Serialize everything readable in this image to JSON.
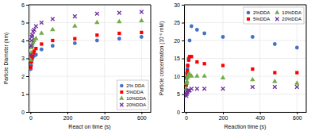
{
  "chart_data": [
    {
      "type": "scatter",
      "xlabel": "React on time (s)",
      "ylabel": "Particle Diameter (nm)",
      "x": [
        2,
        4,
        6,
        8,
        10,
        15,
        20,
        30,
        60,
        120,
        240,
        360,
        480,
        600
      ],
      "xlim": [
        -10,
        650
      ],
      "ylim": [
        0,
        6
      ],
      "xticks": [
        0,
        200,
        400,
        600
      ],
      "yticks": [
        0,
        1,
        2,
        3,
        4,
        5,
        6
      ],
      "grid": true,
      "legend": "lower right",
      "series": [
        {
          "name": "2% DDA",
          "color": "#4472c4",
          "marker": "circle",
          "values": [
            2.4,
            2.6,
            2.8,
            2.9,
            3.0,
            3.1,
            3.15,
            3.2,
            3.5,
            3.7,
            3.85,
            4.0,
            4.1,
            4.2
          ]
        },
        {
          "name": "5%DDA",
          "color": "#ff0000",
          "marker": "square",
          "values": [
            2.5,
            2.8,
            3.0,
            3.1,
            3.2,
            3.3,
            3.4,
            3.55,
            3.8,
            4.0,
            4.1,
            4.3,
            4.4,
            4.45
          ]
        },
        {
          "name": "10%DDA",
          "color": "#70ad47",
          "marker": "triangle",
          "values": [
            2.9,
            3.3,
            3.6,
            3.7,
            3.8,
            3.9,
            4.0,
            4.1,
            4.4,
            4.6,
            4.8,
            5.0,
            5.05,
            5.1
          ]
        },
        {
          "name": "20%DDA",
          "color": "#7030a0",
          "marker": "cross",
          "values": [
            3.2,
            3.7,
            4.0,
            4.2,
            4.3,
            4.5,
            4.6,
            4.8,
            5.0,
            5.2,
            5.35,
            5.5,
            5.55,
            5.6
          ]
        }
      ]
    },
    {
      "type": "scatter",
      "xlabel": "Reaction time (s)",
      "ylabel": "Particle concentration (10⁻⁶ mM)",
      "x": [
        2,
        4,
        6,
        8,
        10,
        15,
        20,
        30,
        60,
        100,
        200,
        360,
        480,
        600
      ],
      "xlim": [
        -10,
        650
      ],
      "ylim": [
        0,
        30
      ],
      "xticks": [
        0,
        200,
        400,
        600
      ],
      "yticks": [
        0,
        5,
        10,
        15,
        20,
        25,
        30
      ],
      "grid": true,
      "legend": "upper right",
      "series": [
        {
          "name": "2%DDA",
          "color": "#4472c4",
          "marker": "circle",
          "values": [
            8.0,
            9.5,
            11.0,
            12.0,
            13.0,
            15.0,
            20.0,
            24.0,
            23.0,
            22.0,
            21.0,
            21.0,
            19.0,
            18.0
          ]
        },
        {
          "name": "5%DDA",
          "color": "#ff0000",
          "marker": "square",
          "values": [
            7.5,
            9.5,
            10.5,
            11.5,
            13.0,
            14.5,
            15.5,
            15.5,
            14.0,
            13.5,
            13.0,
            12.0,
            11.0,
            11.0
          ]
        },
        {
          "name": "10%DDA",
          "color": "#70ad47",
          "marker": "triangle",
          "values": [
            6.5,
            8.0,
            8.5,
            9.5,
            10.0,
            10.5,
            10.5,
            10.0,
            10.0,
            10.0,
            9.5,
            9.0,
            8.5,
            8.0
          ]
        },
        {
          "name": "20%DDA",
          "color": "#7030a0",
          "marker": "cross",
          "values": [
            4.5,
            5.0,
            5.5,
            5.5,
            6.0,
            6.0,
            6.0,
            6.5,
            6.5,
            6.5,
            6.5,
            7.0,
            7.0,
            7.0
          ]
        }
      ]
    }
  ]
}
